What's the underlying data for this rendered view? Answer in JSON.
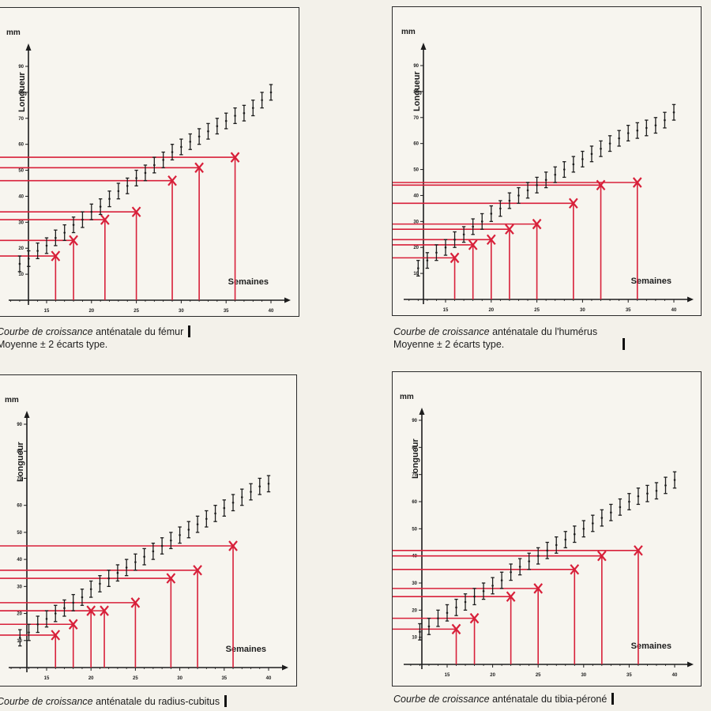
{
  "chart_data": [
    {
      "type": "scatter",
      "xlabel": "Semaines",
      "ylabel": "Longueur",
      "yunit": "mm",
      "xlim": [
        10,
        40
      ],
      "ylim": [
        0,
        90
      ],
      "xticks": [
        "15",
        "20",
        "25",
        "30",
        "35",
        "40"
      ],
      "yticks": [
        "10",
        "20",
        "30",
        "40",
        "50",
        "60",
        "70",
        "80",
        "90"
      ],
      "series": [
        {
          "points": [
            [
              12,
              14
            ],
            [
              13,
              16
            ],
            [
              14,
              19
            ],
            [
              15,
              21
            ],
            [
              16,
              24
            ],
            [
              17,
              26
            ],
            [
              18,
              29
            ],
            [
              19,
              31
            ],
            [
              20,
              34
            ],
            [
              21,
              36
            ],
            [
              22,
              39
            ],
            [
              23,
              42
            ],
            [
              24,
              44
            ],
            [
              25,
              47
            ],
            [
              26,
              49
            ],
            [
              27,
              52
            ],
            [
              28,
              54
            ],
            [
              29,
              57
            ],
            [
              30,
              59
            ],
            [
              31,
              61
            ],
            [
              32,
              63
            ],
            [
              33,
              65
            ],
            [
              34,
              67
            ],
            [
              35,
              69
            ],
            [
              36,
              71
            ],
            [
              37,
              72
            ],
            [
              38,
              74
            ],
            [
              39,
              77
            ],
            [
              40,
              80
            ]
          ],
          "err": 3
        },
        {
          "points": [
            [
              16,
              17
            ],
            [
              18,
              23
            ],
            [
              21.5,
              31
            ],
            [
              25,
              34
            ],
            [
              29,
              46
            ],
            [
              32,
              51
            ],
            [
              36,
              55
            ]
          ]
        }
      ]
    },
    {
      "type": "scatter",
      "xlabel": "Semaines",
      "ylabel": "Longueur",
      "yunit": "mm",
      "xlim": [
        10,
        40
      ],
      "ylim": [
        0,
        90
      ],
      "xticks": [
        "15",
        "20",
        "25",
        "30",
        "35",
        "40"
      ],
      "yticks": [
        "10",
        "20",
        "30",
        "40",
        "50",
        "60",
        "70",
        "80",
        "90"
      ],
      "series": [
        {
          "points": [
            [
              12,
              12
            ],
            [
              13,
              15
            ],
            [
              14,
              18
            ],
            [
              15,
              20
            ],
            [
              16,
              23
            ],
            [
              17,
              25
            ],
            [
              18,
              28
            ],
            [
              19,
              30
            ],
            [
              20,
              33
            ],
            [
              21,
              35
            ],
            [
              22,
              38
            ],
            [
              23,
              40
            ],
            [
              24,
              42
            ],
            [
              25,
              44
            ],
            [
              26,
              46
            ],
            [
              27,
              48
            ],
            [
              28,
              50
            ],
            [
              29,
              52
            ],
            [
              30,
              54
            ],
            [
              31,
              56
            ],
            [
              32,
              58
            ],
            [
              33,
              60
            ],
            [
              34,
              62
            ],
            [
              35,
              64
            ],
            [
              36,
              65
            ],
            [
              37,
              66
            ],
            [
              38,
              67
            ],
            [
              39,
              69
            ],
            [
              40,
              72
            ]
          ],
          "err": 3
        },
        {
          "points": [
            [
              16,
              16
            ],
            [
              18,
              21
            ],
            [
              20,
              23
            ],
            [
              22,
              27
            ],
            [
              25,
              29
            ],
            [
              29,
              37
            ],
            [
              32,
              44
            ],
            [
              36,
              45
            ]
          ]
        }
      ]
    },
    {
      "type": "scatter",
      "xlabel": "Semaines",
      "ylabel": "Longueur",
      "yunit": "mm",
      "xlim": [
        10,
        40
      ],
      "ylim": [
        0,
        90
      ],
      "xticks": [
        "15",
        "20",
        "25",
        "30",
        "35",
        "40"
      ],
      "yticks": [
        "10",
        "20",
        "30",
        "40",
        "50",
        "60",
        "70",
        "80",
        "90"
      ],
      "series": [
        {
          "points": [
            [
              12,
              11
            ],
            [
              13,
              13
            ],
            [
              14,
              16
            ],
            [
              15,
              18
            ],
            [
              16,
              20
            ],
            [
              17,
              22
            ],
            [
              18,
              24
            ],
            [
              19,
              26
            ],
            [
              20,
              29
            ],
            [
              21,
              31
            ],
            [
              22,
              33
            ],
            [
              23,
              35
            ],
            [
              24,
              37
            ],
            [
              25,
              39
            ],
            [
              26,
              41
            ],
            [
              27,
              43
            ],
            [
              28,
              45
            ],
            [
              29,
              47
            ],
            [
              30,
              49
            ],
            [
              31,
              51
            ],
            [
              32,
              53
            ],
            [
              33,
              55
            ],
            [
              34,
              57
            ],
            [
              35,
              59
            ],
            [
              36,
              61
            ],
            [
              37,
              63
            ],
            [
              38,
              65
            ],
            [
              39,
              67
            ],
            [
              40,
              68
            ]
          ],
          "err": 3
        },
        {
          "points": [
            [
              16,
              12
            ],
            [
              18,
              16
            ],
            [
              20,
              21
            ],
            [
              21.5,
              21
            ],
            [
              25,
              24
            ],
            [
              29,
              33
            ],
            [
              32,
              36
            ],
            [
              36,
              45
            ]
          ]
        }
      ]
    },
    {
      "type": "scatter",
      "xlabel": "Semaines",
      "ylabel": "Longueur",
      "yunit": "mm",
      "xlim": [
        10,
        40
      ],
      "ylim": [
        0,
        90
      ],
      "xticks": [
        "15",
        "20",
        "25",
        "30",
        "35",
        "40"
      ],
      "yticks": [
        "10",
        "20",
        "30",
        "40",
        "50",
        "60",
        "70",
        "80",
        "90"
      ],
      "series": [
        {
          "points": [
            [
              12,
              12
            ],
            [
              13,
              14
            ],
            [
              14,
              17
            ],
            [
              15,
              19
            ],
            [
              16,
              21
            ],
            [
              17,
              23
            ],
            [
              18,
              25
            ],
            [
              19,
              27
            ],
            [
              20,
              29
            ],
            [
              21,
              31
            ],
            [
              22,
              34
            ],
            [
              23,
              36
            ],
            [
              24,
              38
            ],
            [
              25,
              40
            ],
            [
              26,
              42
            ],
            [
              27,
              44
            ],
            [
              28,
              46
            ],
            [
              29,
              48
            ],
            [
              30,
              50
            ],
            [
              31,
              52
            ],
            [
              32,
              54
            ],
            [
              33,
              56
            ],
            [
              34,
              58
            ],
            [
              35,
              60
            ],
            [
              36,
              62
            ],
            [
              37,
              63
            ],
            [
              38,
              64
            ],
            [
              39,
              66
            ],
            [
              40,
              68
            ]
          ],
          "err": 3
        },
        {
          "points": [
            [
              16,
              13
            ],
            [
              18,
              17
            ],
            [
              22,
              25
            ],
            [
              25,
              28
            ],
            [
              29,
              35
            ],
            [
              32,
              40
            ],
            [
              36,
              42
            ]
          ]
        }
      ]
    }
  ],
  "captions": [
    {
      "italic": "Courbe de croissance",
      "rest": " anténatale du fémur",
      "line2": "Moyenne ± 2 écarts type."
    },
    {
      "italic": "Courbe de croissance",
      "rest": " anténatale du l'humérus",
      "line2": "Moyenne ± 2 écarts type."
    },
    {
      "italic": "Courbe de croissance",
      "rest": " anténatale du radius-cubitus",
      "line2": ""
    },
    {
      "italic": "Courbe de croissance",
      "rest": " anténatale du tibia-péroné",
      "line2": ""
    }
  ],
  "colors": {
    "marker": "#d8203a",
    "ink": "#1d1d1d",
    "errorbar": "#1d1d1d"
  }
}
